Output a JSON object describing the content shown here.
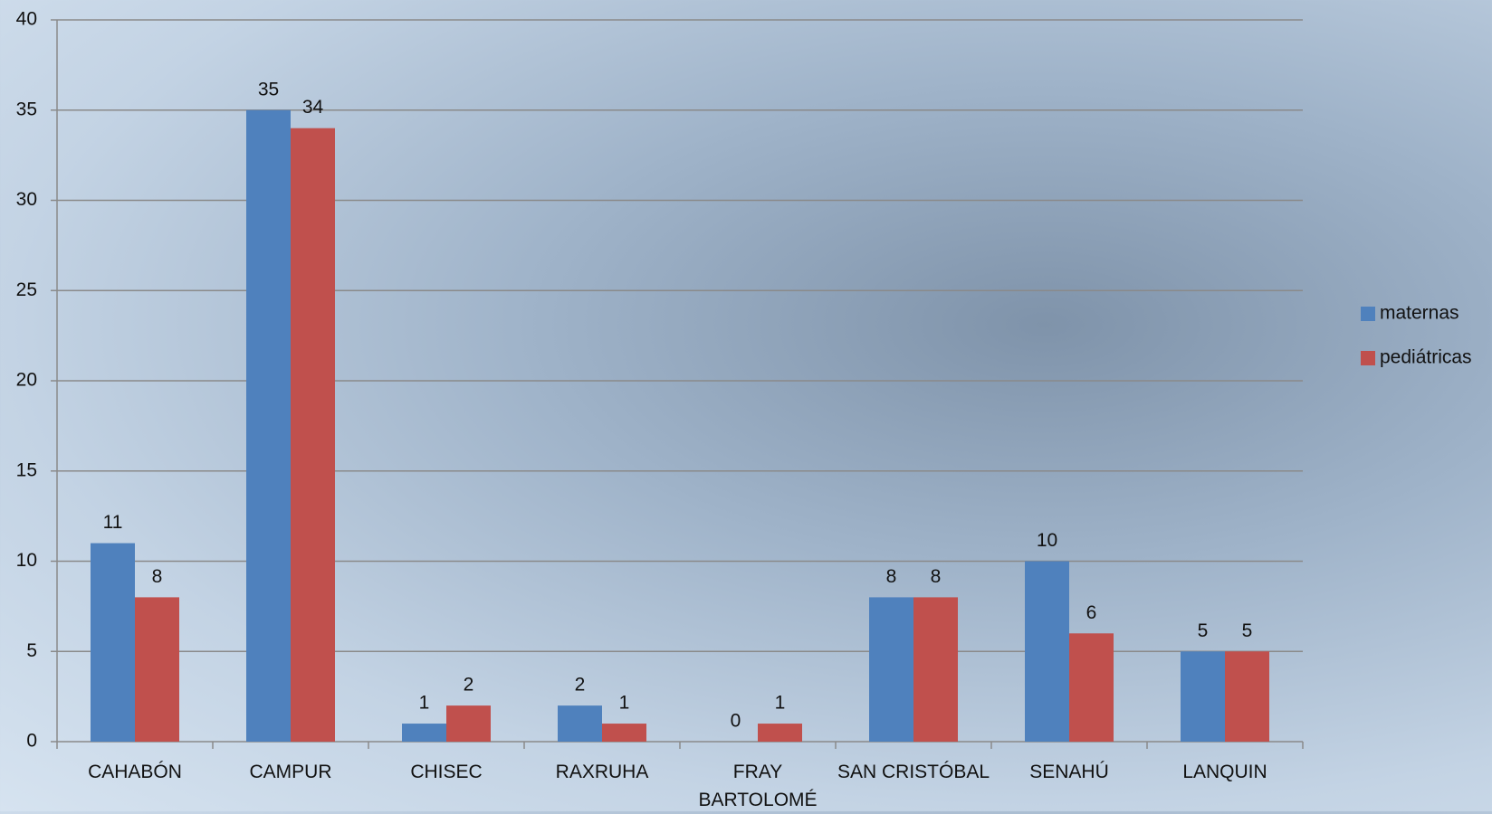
{
  "chart_data": {
    "type": "bar",
    "categories": [
      "CAHABÓN",
      "CAMPUR",
      "CHISEC",
      "RAXRUHA",
      "FRAY BARTOLOMÉ",
      "SAN CRISTÓBAL",
      "SENAHÚ",
      "LANQUIN"
    ],
    "series": [
      {
        "name": "maternas",
        "color": "#4f81bd",
        "values": [
          11,
          35,
          1,
          2,
          0,
          8,
          10,
          5
        ]
      },
      {
        "name": "pediátricas",
        "color": "#c0504d",
        "values": [
          8,
          34,
          2,
          1,
          1,
          8,
          6,
          5
        ]
      }
    ],
    "ylim": [
      0,
      40
    ],
    "yticks": [
      0,
      5,
      10,
      15,
      20,
      25,
      30,
      35,
      40
    ],
    "grid": true,
    "legend": "right"
  }
}
